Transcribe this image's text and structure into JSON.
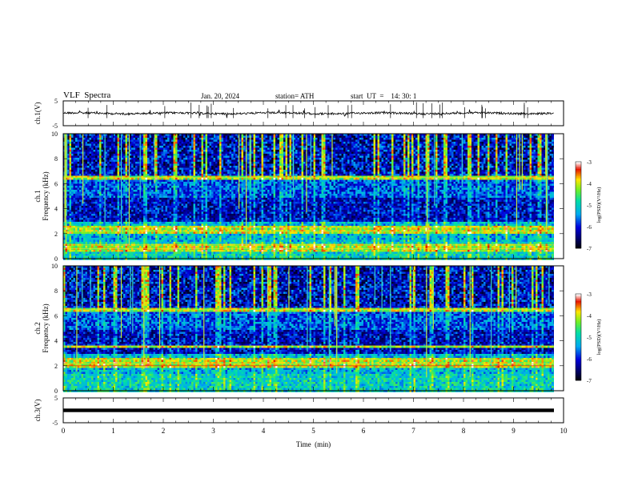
{
  "header": {
    "title": "VLF  Spectra",
    "date": "Jan. 20, 2024",
    "station": "station= ATH",
    "start": "start  UT  =    14: 30: 1"
  },
  "chart_data": {
    "type": "heatmap",
    "x_axis": {
      "label": "Time  (min)",
      "range": [
        0,
        10
      ],
      "ticks": [
        "0",
        "1",
        "2",
        "3",
        "4",
        "5",
        "6",
        "7",
        "8",
        "9",
        "10"
      ]
    },
    "panels": [
      {
        "name": "ch.1",
        "kind": "waveform",
        "ylabel": "ch.1(V)",
        "yrange": [
          -5,
          5
        ],
        "yticks": [
          "5",
          "-5"
        ],
        "trace_level": 0
      },
      {
        "name": "ch.1",
        "kind": "spectrogram",
        "ylabel": "ch.1\nFrequency  (kHz)",
        "yrange": [
          0,
          10
        ],
        "yticks": [
          "0",
          "2",
          "4",
          "6",
          "8",
          "10"
        ],
        "strong_bands_khz": [
          0.8,
          1.1,
          2.2,
          2.5,
          6.5
        ],
        "colorbar": {
          "label": "log(PSD)(V²/Hz)",
          "range": [
            -7,
            -3
          ],
          "ticks": [
            "-3",
            "-4",
            "-5",
            "-6",
            "-7"
          ]
        }
      },
      {
        "name": "ch.2",
        "kind": "spectrogram",
        "ylabel": "ch.2\nFrequency  (kHz)",
        "yrange": [
          0,
          10
        ],
        "yticks": [
          "0",
          "2",
          "4",
          "6",
          "8",
          "10"
        ],
        "strong_bands_khz": [
          2.0,
          2.2,
          2.5,
          3.6,
          6.5
        ],
        "colorbar": {
          "label": "log(PSD)(V²/Hz)",
          "range": [
            -7,
            -3
          ],
          "ticks": [
            "-3",
            "-4",
            "-5",
            "-6",
            "-7"
          ]
        }
      },
      {
        "name": "ch.3",
        "kind": "waveform",
        "ylabel": "ch.3(V)",
        "yrange": [
          -5,
          5
        ],
        "yticks": [
          "5",
          "-5"
        ],
        "trace_level": 0
      }
    ]
  }
}
